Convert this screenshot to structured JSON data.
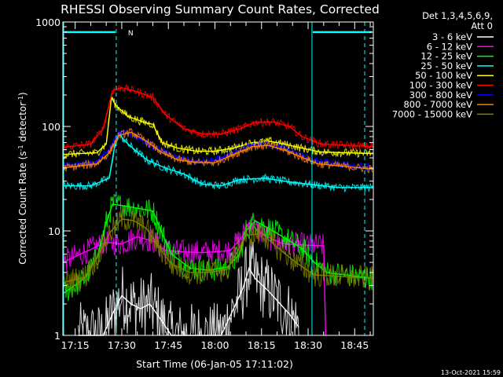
{
  "chart_data": {
    "type": "line",
    "title": "RHESSI Observing Summary Count Rates, Corrected",
    "xlabel": "Start Time (06-Jan-05 17:11:02)",
    "ylabel": "Corrected Count Rate (s",
    "ylabel_sup1": "-1",
    "ylabel_mid": " detector",
    "ylabel_sup2": "-1",
    "ylabel_end": ")",
    "y_scale": "log",
    "ylim": [
      1,
      1000
    ],
    "y_ticks": [
      {
        "value": 1,
        "label": "1"
      },
      {
        "value": 10,
        "label": "10"
      },
      {
        "value": 100,
        "label": "100"
      },
      {
        "value": 1000,
        "label": "1000"
      }
    ],
    "xlim": [
      "17:11:02",
      "18:51:00"
    ],
    "x_ticks": [
      "17:15",
      "17:30",
      "17:45",
      "18:00",
      "18:15",
      "18:30",
      "18:45"
    ],
    "legend_position": "top-right",
    "legend_header": [
      "Det 1,3,4,5,6,9,",
      "Att 0"
    ],
    "footer_date": "13-Oct-2021 15:59",
    "annotations": {
      "night_bars": [
        [
          "17:11:02",
          "17:31:00"
        ],
        [
          "18:31:00",
          "18:51:00"
        ]
      ],
      "night_bar_level": 800,
      "n_label": "N",
      "vertical_lines_solid": [
        "17:11:02",
        "18:31:00"
      ],
      "vertical_lines_dashed": [
        "17:31:00",
        "18:51:00"
      ],
      "color": "#00ffff"
    },
    "series": [
      {
        "name": "3 - 6 keV",
        "color": "#ffffff",
        "x": [
          "17:16:00",
          "17:21:00",
          "17:24:00",
          "17:27:00",
          "17:30:00",
          "17:33:00",
          "17:36:00",
          "17:39:00",
          "17:42:00",
          "17:46:00",
          "17:51:00",
          "17:56:00",
          "17:58:00",
          "18:02:00",
          "18:06:00",
          "18:09:00",
          "18:11:00",
          "18:13:00",
          "18:17:00",
          "18:21:00",
          "18:24:00",
          "18:27:00"
        ],
        "y": [
          1,
          1,
          1,
          1.6,
          2.4,
          2.0,
          1.8,
          2.0,
          1.5,
          1,
          1,
          1,
          1,
          1,
          1.8,
          2.8,
          4.4,
          3.5,
          2.7,
          2.0,
          1.6,
          1.2
        ]
      },
      {
        "name": "6 - 12 keV",
        "color": "#ff00ff",
        "x": [
          "17:11:02",
          "17:25:00",
          "17:30:00",
          "17:35:00",
          "17:40:00",
          "17:44:00",
          "17:50:00",
          "17:56:00",
          "18:00:00",
          "18:05:00",
          "18:09:00",
          "18:11:00",
          "18:14:00",
          "18:18:00",
          "18:22:00",
          "18:30:00",
          "18:35:00",
          "18:35:40"
        ],
        "y": [
          5.0,
          7.8,
          7.5,
          8.8,
          8.0,
          6.5,
          6.3,
          6.2,
          6.3,
          6.5,
          9.0,
          12.0,
          10.0,
          8.5,
          7.5,
          7.3,
          7.2,
          1.0
        ]
      },
      {
        "name": "12 - 25 keV",
        "color": "#00ff00",
        "x": [
          "17:11:02",
          "17:18:00",
          "17:22:00",
          "17:25:00",
          "17:27:00",
          "17:30:00",
          "17:35:00",
          "17:40:00",
          "17:43:00",
          "17:46:00",
          "17:52:00",
          "17:58:00",
          "18:04:00",
          "18:08:00",
          "18:10:00",
          "18:13:00",
          "18:20:00",
          "18:28:00",
          "18:32:00",
          "18:36:00",
          "18:51:00"
        ],
        "y": [
          2.5,
          3.5,
          5.5,
          12,
          18,
          17.5,
          16.5,
          15.5,
          9.5,
          6.0,
          4.4,
          4.2,
          4.5,
          6.0,
          10,
          12.5,
          9.5,
          6.8,
          5.0,
          4.0,
          3.5
        ]
      },
      {
        "name": "25 - 50 keV",
        "color": "#00ffff",
        "x": [
          "17:11:02",
          "17:20:00",
          "17:26:00",
          "17:27:30",
          "17:29:00",
          "17:32:00",
          "17:38:00",
          "17:44:00",
          "17:50:00",
          "17:56:00",
          "18:02:00",
          "18:08:00",
          "18:16:00",
          "18:22:00",
          "18:30:00",
          "18:40:00",
          "18:51:00"
        ],
        "y": [
          27,
          27,
          32,
          60,
          85,
          68,
          48,
          40,
          35,
          28,
          27,
          31,
          32,
          30,
          28,
          26,
          26
        ]
      },
      {
        "name": "50 - 100 keV",
        "color": "#ffff00",
        "x": [
          "17:11:02",
          "17:22:00",
          "17:25:00",
          "17:26:40",
          "17:28:00",
          "17:32:00",
          "17:37:00",
          "17:40:00",
          "17:43:00",
          "17:48:00",
          "17:54:00",
          "18:00:00",
          "18:06:00",
          "18:12:00",
          "18:18:00",
          "18:24:00",
          "18:28:00",
          "18:34:00",
          "18:51:00"
        ],
        "y": [
          54,
          56,
          68,
          190,
          160,
          125,
          110,
          105,
          70,
          62,
          58,
          58,
          62,
          70,
          72,
          66,
          62,
          57,
          55
        ]
      },
      {
        "name": "100 - 300 keV",
        "color": "#ff0000",
        "x": [
          "17:11:02",
          "17:20:00",
          "17:24:00",
          "17:27:00",
          "17:30:00",
          "17:35:00",
          "17:40:00",
          "17:44:00",
          "17:50:00",
          "17:56:00",
          "18:02:00",
          "18:08:00",
          "18:13:00",
          "18:19:00",
          "18:24:00",
          "18:28:00",
          "18:34:00",
          "18:51:00"
        ],
        "y": [
          63,
          68,
          95,
          220,
          235,
          215,
          190,
          130,
          95,
          85,
          85,
          95,
          110,
          110,
          100,
          80,
          68,
          64
        ]
      },
      {
        "name": "300 - 800 keV",
        "color": "#0000ff",
        "x": [
          "17:11:02",
          "17:22:00",
          "17:26:00",
          "17:29:00",
          "17:33:00",
          "17:38:00",
          "17:43:00",
          "17:48:00",
          "17:54:00",
          "18:00:00",
          "18:06:00",
          "18:12:00",
          "18:17:00",
          "18:22:00",
          "18:27:00",
          "18:33:00",
          "18:51:00"
        ],
        "y": [
          42,
          46,
          60,
          85,
          85,
          70,
          58,
          50,
          46,
          47,
          56,
          66,
          68,
          62,
          54,
          46,
          40
        ]
      },
      {
        "name": "800 - 7000 keV",
        "color": "#ff8000",
        "x": [
          "17:11:02",
          "17:22:00",
          "17:26:00",
          "17:29:00",
          "17:33:00",
          "17:38:00",
          "17:43:00",
          "17:48:00",
          "17:54:00",
          "18:00:00",
          "18:06:00",
          "18:12:00",
          "18:17:00",
          "18:22:00",
          "18:27:00",
          "18:33:00",
          "18:51:00"
        ],
        "y": [
          40,
          44,
          56,
          82,
          88,
          72,
          56,
          48,
          45,
          45,
          54,
          64,
          66,
          60,
          52,
          44,
          39
        ]
      },
      {
        "name": "7000 - 15000 keV",
        "color": "#808000",
        "x": [
          "17:11:02",
          "17:18:00",
          "17:22:00",
          "17:26:00",
          "17:30:00",
          "17:34:00",
          "17:38:00",
          "17:42:00",
          "17:46:00",
          "17:52:00",
          "17:58:00",
          "18:04:00",
          "18:10:00",
          "18:15:00",
          "18:20:00",
          "18:26:00",
          "18:32:00",
          "18:51:00"
        ],
        "y": [
          3.2,
          3.6,
          5.5,
          9.5,
          13.0,
          12.5,
          10.5,
          7.0,
          4.8,
          4.0,
          4.0,
          4.3,
          9.0,
          9.5,
          7.0,
          5.0,
          3.8,
          3.5
        ]
      }
    ]
  }
}
